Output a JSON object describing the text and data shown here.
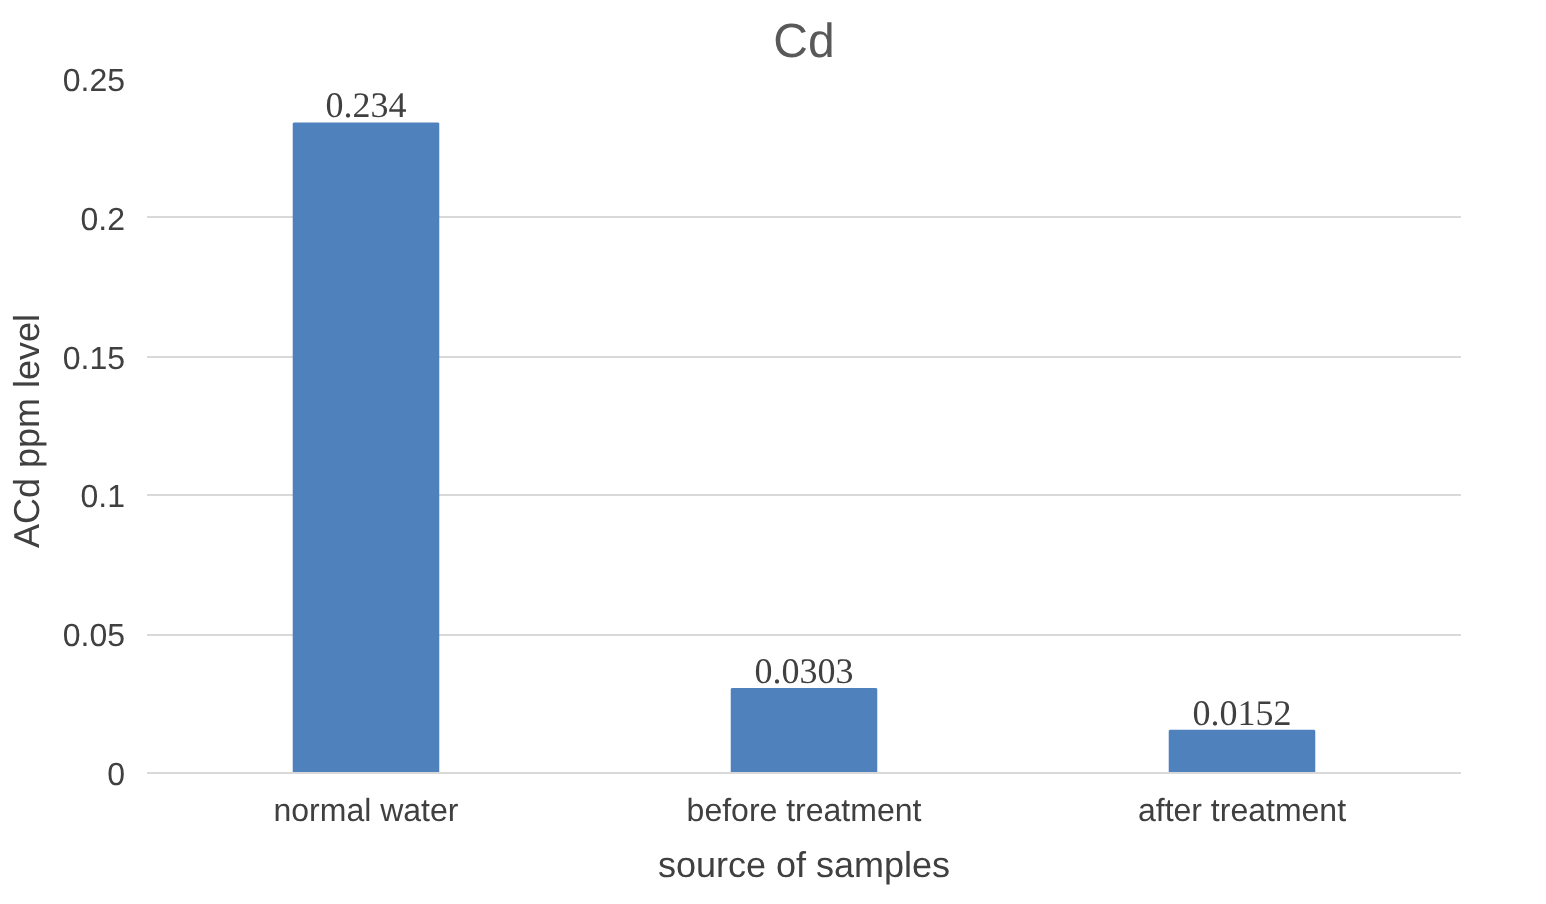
{
  "chart_data": {
    "type": "bar",
    "title": "Cd",
    "xlabel": "source of samples",
    "ylabel": "ACd ppm  level",
    "categories": [
      "normal water",
      "before treatment",
      "after treatment"
    ],
    "values": [
      0.234,
      0.0303,
      0.0152
    ],
    "color": "#4f81bd",
    "ylim": [
      0,
      0.25
    ],
    "yticks": [
      0,
      0.05,
      0.1,
      0.15,
      0.2,
      0.25
    ],
    "grid": "y",
    "data_labels": true
  }
}
